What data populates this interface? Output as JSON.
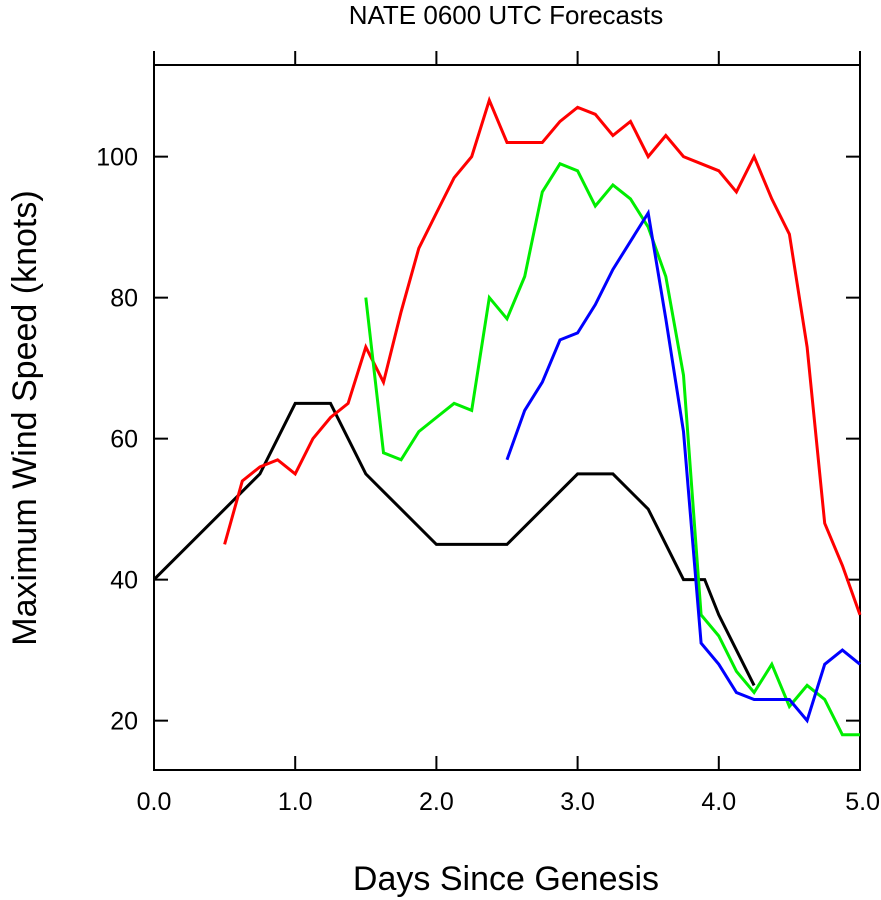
{
  "chart_data": {
    "type": "line",
    "title": "NATE 0600 UTC Forecasts",
    "xlabel": "Days Since Genesis",
    "ylabel": "Maximum Wind Speed (knots)",
    "xlim": [
      0.0,
      5.0
    ],
    "ylim": [
      13,
      113
    ],
    "x_ticks": [
      0.0,
      1.0,
      2.0,
      3.0,
      4.0,
      5.0
    ],
    "x_tick_labels": [
      "0.0",
      "1.0",
      "2.0",
      "3.0",
      "4.0",
      "5.0"
    ],
    "y_ticks": [
      20,
      40,
      60,
      80,
      100
    ],
    "y_tick_labels": [
      "20",
      "40",
      "60",
      "80",
      "100"
    ],
    "grid": false,
    "series": [
      {
        "color": "#000000",
        "x": [
          0.0,
          0.75,
          1.0,
          1.25,
          1.5,
          2.0,
          2.5,
          3.0,
          3.25,
          3.5,
          3.75,
          3.9,
          4.0,
          4.25
        ],
        "y": [
          40,
          55,
          65,
          65,
          55,
          45,
          45,
          55,
          55,
          50,
          40,
          40,
          35,
          25
        ]
      },
      {
        "color": "#ff0000",
        "x": [
          0.5,
          0.625,
          0.75,
          0.875,
          1.0,
          1.125,
          1.25,
          1.375,
          1.5,
          1.625,
          1.75,
          1.875,
          2.0,
          2.125,
          2.25,
          2.375,
          2.5,
          2.625,
          2.75,
          2.875,
          3.0,
          3.125,
          3.25,
          3.375,
          3.5,
          3.625,
          3.75,
          3.875,
          4.0,
          4.125,
          4.25,
          4.375,
          4.5,
          4.625,
          4.75,
          4.875,
          5.0
        ],
        "y": [
          45,
          54,
          56,
          57,
          55,
          60,
          63,
          65,
          73,
          68,
          78,
          87,
          92,
          97,
          100,
          108,
          102,
          102,
          102,
          105,
          107,
          106,
          103,
          105,
          100,
          103,
          100,
          99,
          98,
          95,
          100,
          94,
          89,
          73,
          48,
          42,
          35
        ]
      },
      {
        "color": "#00ee00",
        "x": [
          1.5,
          1.625,
          1.75,
          1.875,
          2.0,
          2.125,
          2.25,
          2.375,
          2.5,
          2.625,
          2.75,
          2.875,
          3.0,
          3.125,
          3.25,
          3.375,
          3.5,
          3.625,
          3.75,
          3.875,
          4.0,
          4.125,
          4.25,
          4.375,
          4.5,
          4.625,
          4.75,
          4.875,
          5.0
        ],
        "y": [
          80,
          58,
          57,
          61,
          63,
          65,
          64,
          80,
          77,
          83,
          95,
          99,
          98,
          93,
          96,
          94,
          90,
          83,
          69,
          35,
          32,
          27,
          24,
          28,
          22,
          25,
          23,
          18,
          18
        ]
      },
      {
        "color": "#0000ff",
        "x": [
          2.5,
          2.625,
          2.75,
          2.875,
          3.0,
          3.125,
          3.25,
          3.375,
          3.5,
          3.625,
          3.75,
          3.875,
          4.0,
          4.125,
          4.25,
          4.375,
          4.5,
          4.625,
          4.75,
          4.875,
          5.0
        ],
        "y": [
          57,
          64,
          68,
          74,
          75,
          79,
          84,
          88,
          92,
          77,
          61,
          31,
          28,
          24,
          23,
          23,
          23,
          20,
          28,
          30,
          28
        ]
      }
    ]
  }
}
